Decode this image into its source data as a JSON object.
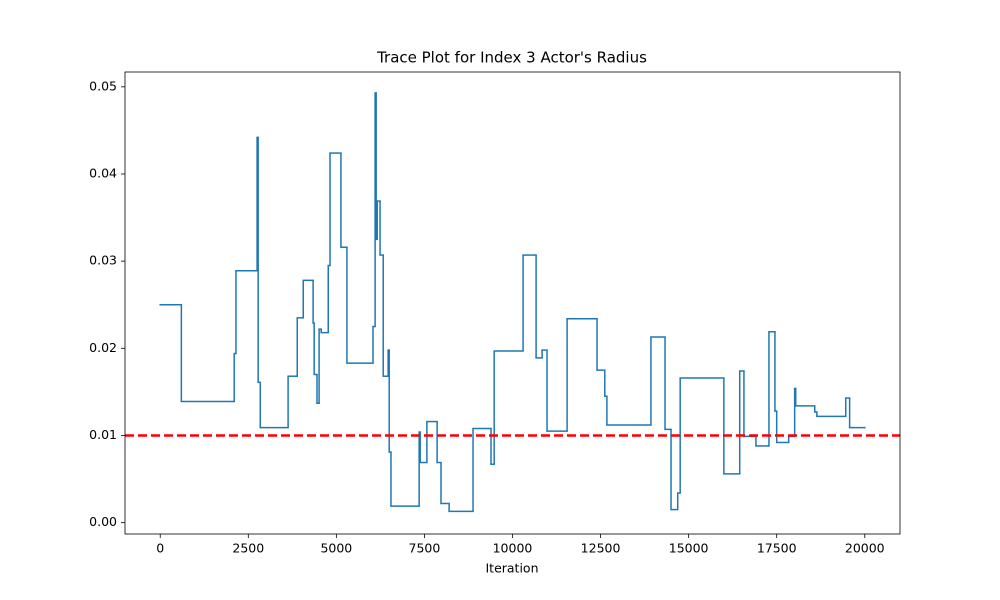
{
  "chart_data": {
    "type": "line",
    "drawstyle": "steps-post",
    "title": "Trace Plot for Index 3 Actor's Radius",
    "x_label": "Iteration",
    "x": [
      0,
      600,
      2100,
      2150,
      2750,
      2780,
      2840,
      3630,
      3890,
      4060,
      4340,
      4370,
      4450,
      4510,
      4570,
      4770,
      4820,
      5130,
      5300,
      6040,
      6100,
      6130,
      6160,
      6240,
      6330,
      6470,
      6500,
      6550,
      7350,
      7380,
      7570,
      7860,
      7970,
      8200,
      8880,
      9390,
      9480,
      10300,
      10670,
      10840,
      10980,
      11550,
      12400,
      12620,
      12680,
      13930,
      14330,
      14500,
      14690,
      14760,
      16000,
      16450,
      16570,
      16910,
      17280,
      17450,
      17500,
      17840,
      18010,
      18040,
      18580,
      18640,
      19460,
      19570,
      20000
    ],
    "values": [
      0.025,
      0.0139,
      0.0194,
      0.0289,
      0.0442,
      0.0161,
      0.0109,
      0.0168,
      0.0235,
      0.0278,
      0.0229,
      0.017,
      0.0137,
      0.0222,
      0.0218,
      0.0295,
      0.0424,
      0.0316,
      0.0183,
      0.0225,
      0.0493,
      0.0325,
      0.0369,
      0.0307,
      0.0168,
      0.0198,
      0.0081,
      0.0019,
      0.0104,
      0.0069,
      0.0116,
      0.0069,
      0.0022,
      0.0013,
      0.0108,
      0.0067,
      0.0197,
      0.0307,
      0.0189,
      0.0198,
      0.0105,
      0.0234,
      0.0175,
      0.0145,
      0.0112,
      0.0213,
      0.0107,
      0.0015,
      0.0034,
      0.0166,
      0.0056,
      0.0174,
      0.0099,
      0.0088,
      0.0219,
      0.0128,
      0.0092,
      0.0099,
      0.0154,
      0.0134,
      0.0127,
      0.0122,
      0.0143,
      0.0109,
      0.0109
    ],
    "color": "#1f77b4",
    "reference_line": {
      "value": 0.01,
      "color": "#ff0000",
      "style": "dashed"
    },
    "xlim": [
      -1000,
      21000
    ],
    "xticks": [
      0,
      2500,
      5000,
      7500,
      10000,
      12500,
      15000,
      17500,
      20000
    ],
    "ylim": [
      -0.0013,
      0.0517
    ],
    "yticks": [
      {
        "value": 0,
        "label": "0.00"
      },
      {
        "value": 0.01,
        "label": "0.01"
      },
      {
        "value": 0.02,
        "label": "0.02"
      },
      {
        "value": 0.03,
        "label": "0.03"
      },
      {
        "value": 0.04,
        "label": "0.04"
      },
      {
        "value": 0.05,
        "label": "0.05"
      }
    ]
  }
}
